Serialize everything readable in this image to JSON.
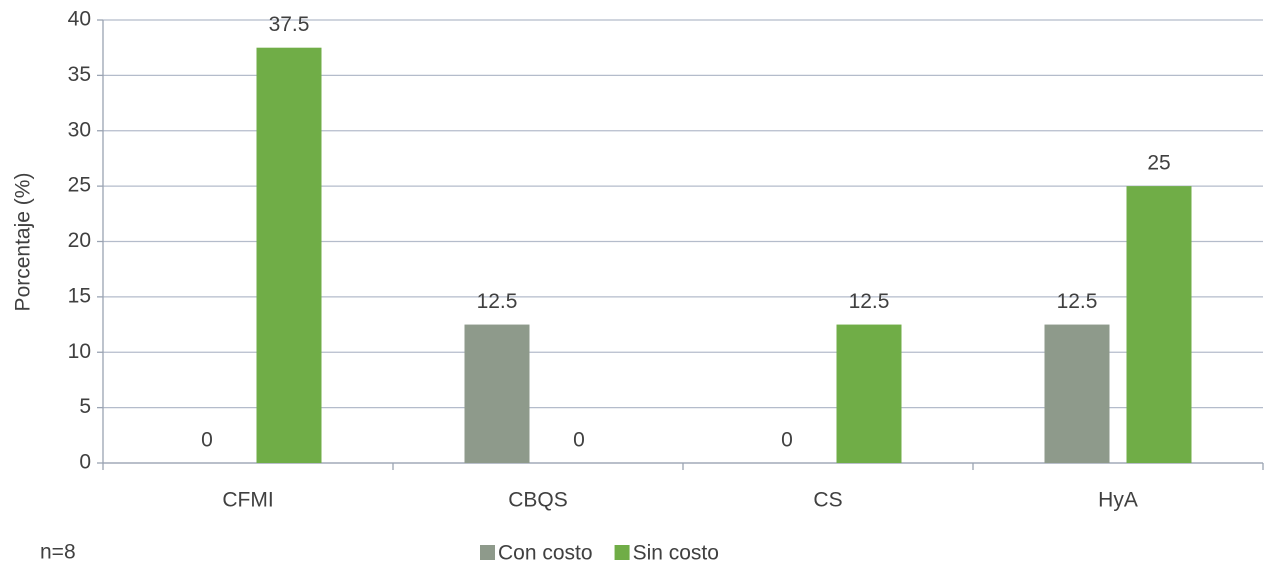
{
  "chart_data": {
    "type": "bar",
    "y_label": "Porcentaje (%)",
    "annotation": "n=8",
    "categories": [
      "CFMI",
      "CBQS",
      "CS",
      "HyA"
    ],
    "series": [
      {
        "name": "Con costo",
        "color": "#8e9a8b",
        "values": [
          0,
          12.5,
          0,
          12.5
        ]
      },
      {
        "name": "Sin costo",
        "color": "#70ad47",
        "values": [
          37.5,
          0,
          12.5,
          25
        ]
      }
    ],
    "ylim": [
      0,
      40
    ],
    "yticks": [
      0,
      5,
      10,
      15,
      20,
      25,
      30,
      35,
      40
    ],
    "grid": true,
    "legend": "bottom"
  }
}
